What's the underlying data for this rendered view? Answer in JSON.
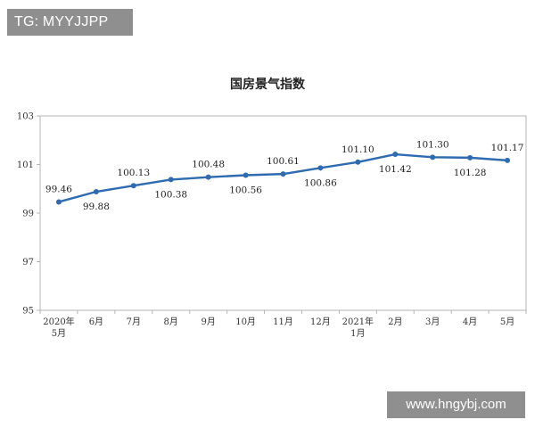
{
  "watermark_top": "TG: MYYJJPP",
  "watermark_bottom": "www.hngybj.com",
  "chart_data": {
    "type": "line",
    "title": "国房景气指数",
    "categories": [
      "2020年 5月",
      "6月",
      "7月",
      "8月",
      "9月",
      "10月",
      "11月",
      "12月",
      "2021年 1月",
      "2月",
      "3月",
      "4月",
      "5月"
    ],
    "category_lines": [
      [
        "2020年",
        "5月"
      ],
      [
        "6月"
      ],
      [
        "7月"
      ],
      [
        "8月"
      ],
      [
        "9月"
      ],
      [
        "10月"
      ],
      [
        "11月"
      ],
      [
        "12月"
      ],
      [
        "2021年",
        "1月"
      ],
      [
        "2月"
      ],
      [
        "3月"
      ],
      [
        "4月"
      ],
      [
        "5月"
      ]
    ],
    "values": [
      99.46,
      99.88,
      100.13,
      100.38,
      100.48,
      100.56,
      100.61,
      100.86,
      101.1,
      101.42,
      101.3,
      101.28,
      101.17
    ],
    "value_labels": [
      "99.46",
      "99.88",
      "100.13",
      "100.38",
      "100.48",
      "100.56",
      "100.61",
      "100.86",
      "101.10",
      "101.42",
      "101.30",
      "101.28",
      "101.17"
    ],
    "label_position": [
      "above",
      "below",
      "above",
      "below",
      "above",
      "below",
      "above",
      "below",
      "above",
      "below",
      "above",
      "below",
      "above"
    ],
    "y_ticks": [
      "95",
      "97",
      "99",
      "101",
      "103"
    ],
    "ylim": [
      95,
      103
    ],
    "xlabel": "",
    "ylabel": "",
    "grid": false,
    "line_color": "#2e6bb0"
  }
}
